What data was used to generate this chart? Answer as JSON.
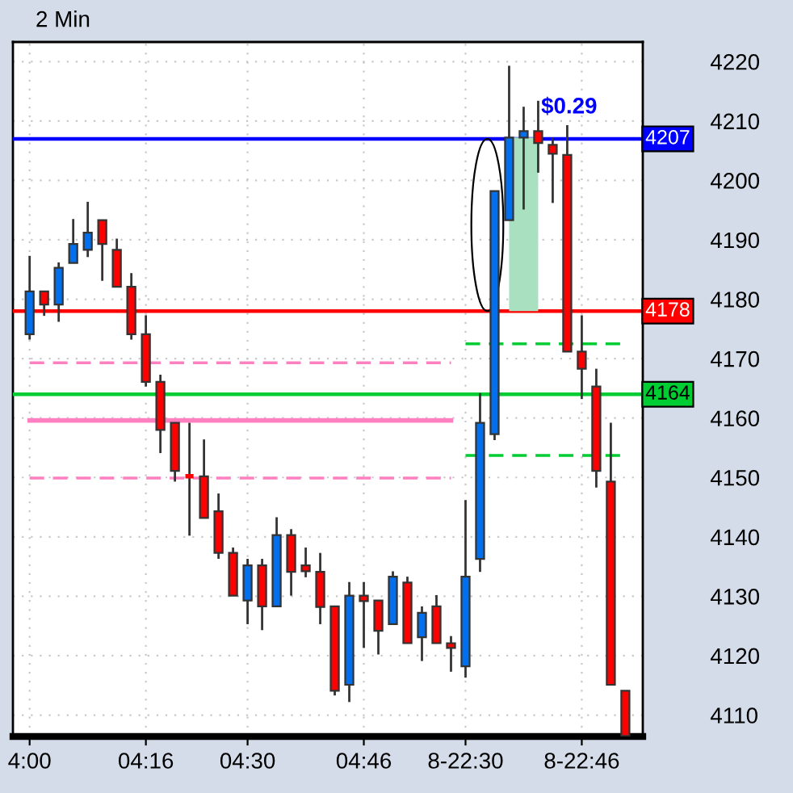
{
  "chart_data": {
    "type": "candlestick",
    "title": "2 Min",
    "categories": [
      "4:00",
      null,
      null,
      null,
      null,
      null,
      null,
      null,
      "04:16",
      null,
      null,
      null,
      null,
      null,
      null,
      "04:30",
      null,
      null,
      null,
      null,
      null,
      null,
      null,
      "04:46",
      null,
      null,
      null,
      null,
      null,
      null,
      "8-22:30",
      null,
      null,
      null,
      null,
      null,
      null,
      null,
      "8-22:46",
      null,
      null,
      null
    ],
    "ohlc": [
      [
        4174.1,
        4187.3,
        4173.2,
        4181.3
      ],
      [
        4181.3,
        4181.3,
        4177.2,
        4179.1
      ],
      [
        4179.1,
        4186.2,
        4176.2,
        4185.3
      ],
      [
        4186.1,
        4193.5,
        4186.1,
        4189.3
      ],
      [
        4188.3,
        4196.4,
        4187.1,
        4191.2
      ],
      [
        4193.3,
        4193.3,
        4183.1,
        4189.3
      ],
      [
        4188.3,
        4190.2,
        4182.1,
        4182.1
      ],
      [
        4182.1,
        4184.4,
        4173.2,
        4174.1
      ],
      [
        4174.1,
        4177.3,
        4165.3,
        4166.1
      ],
      [
        4166.1,
        4167.3,
        4154.1,
        4158.0
      ],
      [
        4159.2,
        4159.2,
        4149.3,
        4151.1
      ],
      [
        4150.2,
        4159.2,
        4140.2,
        4150.2
      ],
      [
        4150.2,
        4156.4,
        4143.2,
        4143.2
      ],
      [
        4144.3,
        4147.3,
        4136.3,
        4137.3
      ],
      [
        4137.3,
        4138.2,
        4130.1,
        4130.1
      ],
      [
        4129.3,
        4136.3,
        4125.3,
        4135.2
      ],
      [
        4135.2,
        4136.3,
        4124.3,
        4128.3
      ],
      [
        4128.3,
        4143.3,
        4128.3,
        4140.3
      ],
      [
        4140.3,
        4141.3,
        4130.1,
        4134.1
      ],
      [
        4135.2,
        4138.2,
        4133.2,
        4134.2
      ],
      [
        4134.1,
        4137.3,
        4125.3,
        4128.2
      ],
      [
        4128.3,
        4128.3,
        4113.3,
        4114.1
      ],
      [
        4115.1,
        4132.4,
        4112.2,
        4130.1
      ],
      [
        4130.1,
        4132.4,
        4121.3,
        4129.2
      ],
      [
        4129.3,
        4129.3,
        4120.2,
        4124.2
      ],
      [
        4125.3,
        4134.2,
        4125.3,
        4133.3
      ],
      [
        4132.3,
        4133.3,
        4122.1,
        4122.1
      ],
      [
        4123.1,
        4128.3,
        4119.1,
        4127.2
      ],
      [
        4128.3,
        4130.2,
        4122.1,
        4122.1
      ],
      [
        4122.1,
        4123.3,
        4117.3,
        4121.3
      ],
      [
        4118.2,
        4146.2,
        4116.3,
        4133.3
      ],
      [
        4136.3,
        4164.2,
        4134.1,
        4159.2
      ],
      [
        4157.3,
        4198.2,
        4156.3,
        4198.2
      ],
      [
        4193.3,
        4219.3,
        4193.3,
        4207.2
      ],
      [
        4207.2,
        4212.4,
        4195.1,
        4208.3
      ],
      [
        4208.3,
        4213.4,
        4201.3,
        4206.3
      ],
      [
        4206.0,
        4207.2,
        4196.2,
        4204.5
      ],
      [
        4204.3,
        4209.3,
        4171.2,
        4171.2
      ],
      [
        4171.2,
        4177.3,
        4163.2,
        4168.3
      ],
      [
        4165.3,
        4168.3,
        4148.3,
        4151.1
      ],
      [
        4149.3,
        4159.2,
        4115.1,
        4115.1
      ],
      [
        4114.1,
        4114.1,
        4106.5,
        4106.5
      ]
    ],
    "colors": [
      "#0070f0",
      "#ff0000",
      "#0070f0",
      "#0070f0",
      "#0070f0",
      "#ff0000",
      "#ff0000",
      "#ff0000",
      "#ff0000",
      "#ff0000",
      "#ff0000",
      "#ff0000",
      "#ff0000",
      "#ff0000",
      "#ff0000",
      "#0070f0",
      "#ff0000",
      "#0070f0",
      "#ff0000",
      "#ff0000",
      "#ff0000",
      "#ff0000",
      "#0070f0",
      "#ff0000",
      "#ff0000",
      "#0070f0",
      "#ff0000",
      "#0070f0",
      "#ff0000",
      "#ff0000",
      "#0070f0",
      "#0070f0",
      "#0070f0",
      "#0070f0",
      "#0070f0",
      "#ff0000",
      "#ff0000",
      "#ff0000",
      "#ff0000",
      "#ff0000",
      "#ff0000",
      "#ff0000"
    ],
    "series": [
      {
        "type": "line",
        "color": "#ff80c0",
        "line_style": "solid",
        "values": [
          4159.6,
          4159.6,
          4159.6,
          4159.6,
          4159.6,
          4159.6,
          4159.6,
          4159.6,
          4159.6,
          4159.6,
          4159.6,
          4159.6,
          4159.6,
          4159.6,
          4159.6,
          4159.6,
          4159.6,
          4159.6,
          4159.6,
          4159.6,
          4159.6,
          4159.6,
          4159.6,
          4159.6,
          4159.6,
          4159.6,
          4159.6,
          4159.6,
          4159.6,
          4159.6,
          null,
          null,
          null,
          null,
          null,
          null,
          null,
          null,
          null,
          null,
          null,
          null
        ]
      },
      {
        "type": "line",
        "color": "#ff80c0",
        "line_style": "dashed",
        "values": [
          4169.3,
          4169.3,
          4169.3,
          4169.3,
          4169.3,
          4169.3,
          4169.3,
          4169.3,
          4169.3,
          4169.3,
          4169.3,
          4169.3,
          4169.3,
          4169.3,
          4169.3,
          4169.3,
          4169.3,
          4169.3,
          4169.3,
          4169.3,
          4169.3,
          4169.3,
          4169.3,
          4169.3,
          4169.3,
          4169.3,
          4169.3,
          4169.3,
          4169.3,
          4169.3,
          null,
          null,
          null,
          null,
          null,
          null,
          null,
          null,
          null,
          null,
          null,
          null
        ]
      },
      {
        "type": "line",
        "color": "#ff80c0",
        "line_style": "dashed",
        "values": [
          4149.9,
          4149.9,
          4149.9,
          4149.9,
          4149.9,
          4149.9,
          4149.9,
          4149.9,
          4149.9,
          4149.9,
          4149.9,
          4149.9,
          4149.9,
          4149.9,
          4149.9,
          4149.9,
          4149.9,
          4149.9,
          4149.9,
          4149.9,
          4149.9,
          4149.9,
          4149.9,
          4149.9,
          4149.9,
          4149.9,
          4149.9,
          4149.9,
          4149.9,
          4149.9,
          null,
          null,
          null,
          null,
          null,
          null,
          null,
          null,
          null,
          null,
          null,
          null
        ]
      },
      {
        "type": "line",
        "color": "#00cc33",
        "line_style": "dashed",
        "values": [
          null,
          null,
          null,
          null,
          null,
          null,
          null,
          null,
          null,
          null,
          null,
          null,
          null,
          null,
          null,
          null,
          null,
          null,
          null,
          null,
          null,
          null,
          null,
          null,
          null,
          null,
          null,
          null,
          null,
          null,
          4172.5,
          4172.5,
          4172.5,
          4172.5,
          4172.5,
          4172.5,
          4172.5,
          4172.5,
          4172.5,
          4172.5,
          4172.5,
          4172.5
        ]
      },
      {
        "type": "line",
        "color": "#00cc33",
        "line_style": "dashed",
        "values": [
          null,
          null,
          null,
          null,
          null,
          null,
          null,
          null,
          null,
          null,
          null,
          null,
          null,
          null,
          null,
          null,
          null,
          null,
          null,
          null,
          null,
          null,
          null,
          null,
          null,
          null,
          null,
          null,
          null,
          null,
          4153.7,
          4153.7,
          4153.7,
          4153.7,
          4153.7,
          4153.7,
          4153.7,
          4153.7,
          4153.7,
          4153.7,
          4153.7,
          4153.7
        ]
      },
      {
        "type": "line",
        "color": "#a8e0c0",
        "upper": [
          null,
          null,
          null,
          null,
          null,
          null,
          null,
          null,
          null,
          null,
          null,
          null,
          null,
          null,
          null,
          null,
          null,
          null,
          null,
          null,
          null,
          null,
          null,
          null,
          null,
          null,
          null,
          null,
          null,
          null,
          null,
          null,
          null,
          4207,
          4207,
          4207,
          null,
          null,
          null,
          null,
          null,
          null
        ],
        "values": [
          null,
          null,
          null,
          null,
          null,
          null,
          null,
          null,
          null,
          null,
          null,
          null,
          null,
          null,
          null,
          null,
          null,
          null,
          null,
          null,
          null,
          null,
          null,
          null,
          null,
          null,
          null,
          null,
          null,
          null,
          null,
          null,
          null,
          4207,
          4207,
          4207,
          null,
          null,
          null,
          null,
          null,
          null
        ],
        "lower": [
          null,
          null,
          null,
          null,
          null,
          null,
          null,
          null,
          null,
          null,
          null,
          null,
          null,
          null,
          null,
          null,
          null,
          null,
          null,
          null,
          null,
          null,
          null,
          null,
          null,
          null,
          null,
          null,
          null,
          null,
          null,
          null,
          null,
          4178,
          4178,
          4178,
          null,
          null,
          null,
          null,
          null,
          null
        ]
      }
    ],
    "ref_lines": [
      {
        "axis": "y",
        "value": 4207,
        "label": "4207",
        "color": "#0000ff"
      },
      {
        "axis": "y",
        "value": 4178,
        "label": "4178",
        "color": "#ff0000"
      },
      {
        "axis": "y",
        "value": 4164,
        "label": "4164",
        "color": "#00cc33"
      }
    ],
    "annotations": [
      {
        "text": "$0.29",
        "y": 4207
      }
    ],
    "ylim": [
      4106.4,
      4223.3
    ],
    "yticks": [
      4110,
      4120,
      4130,
      4140,
      4150,
      4160,
      4170,
      4180,
      4190,
      4200,
      4210,
      4220
    ],
    "grid": true
  }
}
